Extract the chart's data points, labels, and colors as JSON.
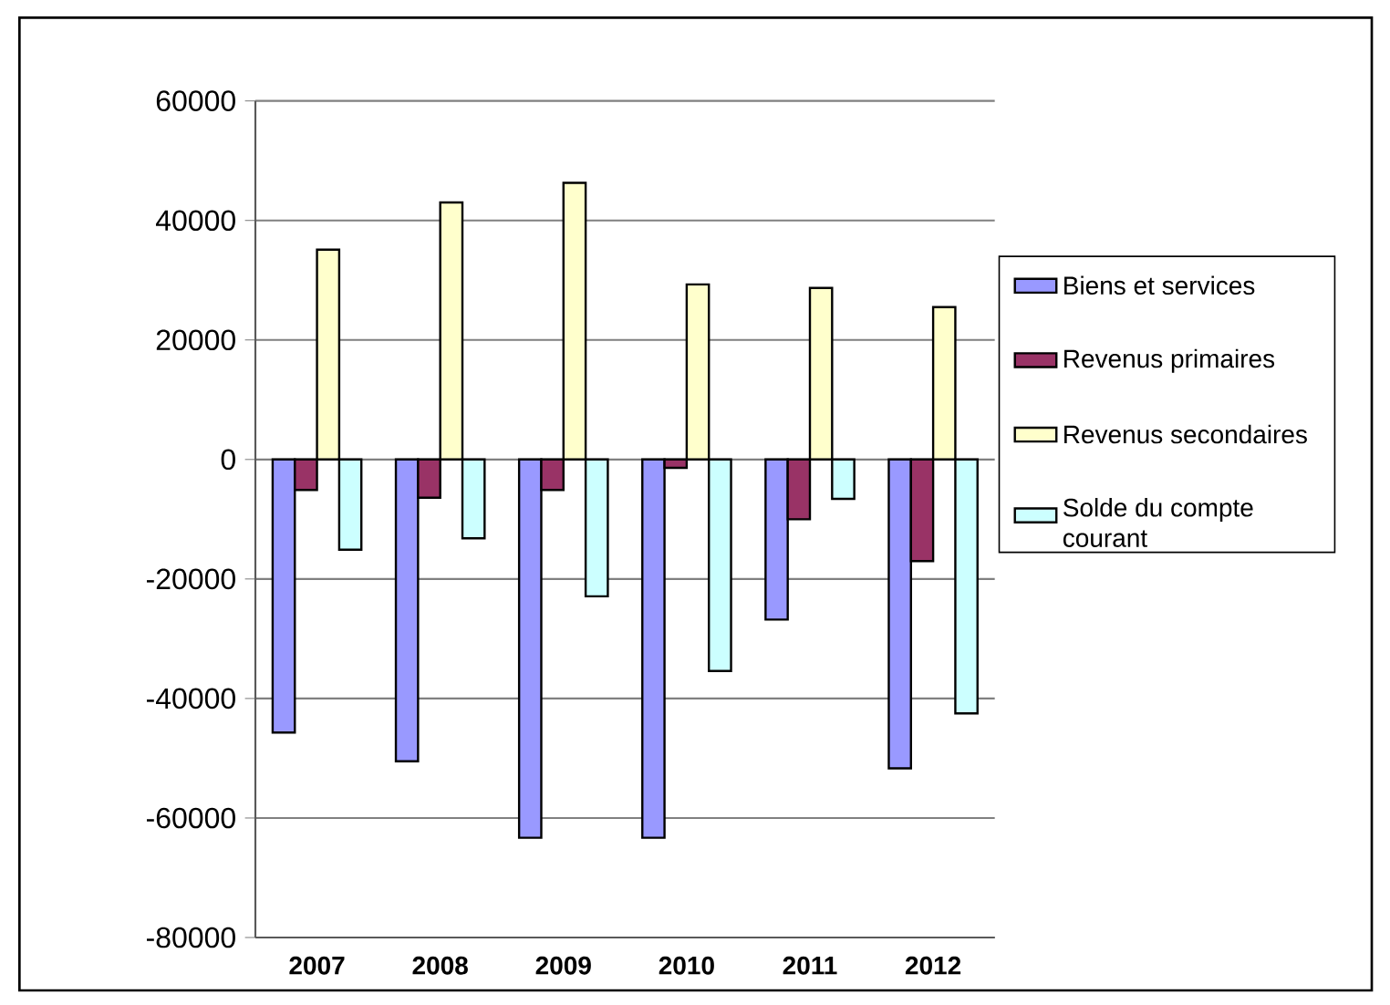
{
  "chart_data": {
    "type": "bar",
    "categories": [
      "2007",
      "2008",
      "2009",
      "2010",
      "2011",
      "2012"
    ],
    "series": [
      {
        "name": "Biens et services",
        "color": "#9999ff",
        "values": [
          -45700,
          -50500,
          -63300,
          -63300,
          -26800,
          -51700
        ]
      },
      {
        "name": "Revenus primaires",
        "color": "#993366",
        "values": [
          -5100,
          -6400,
          -5100,
          -1400,
          -10000,
          -17000
        ]
      },
      {
        "name": "Revenus secondaires",
        "color": "#ffffcc",
        "values": [
          35100,
          43000,
          46300,
          29300,
          28700,
          25500
        ]
      },
      {
        "name": "Solde du compte courant",
        "color": "#ccffff",
        "values": [
          -15100,
          -13200,
          -22900,
          -35400,
          -6600,
          -42500
        ]
      }
    ],
    "ylim": [
      -80000,
      60000
    ],
    "yticks": [
      -80000,
      -60000,
      -40000,
      -20000,
      0,
      20000,
      40000,
      60000
    ],
    "grid": "y",
    "legend": "right"
  }
}
